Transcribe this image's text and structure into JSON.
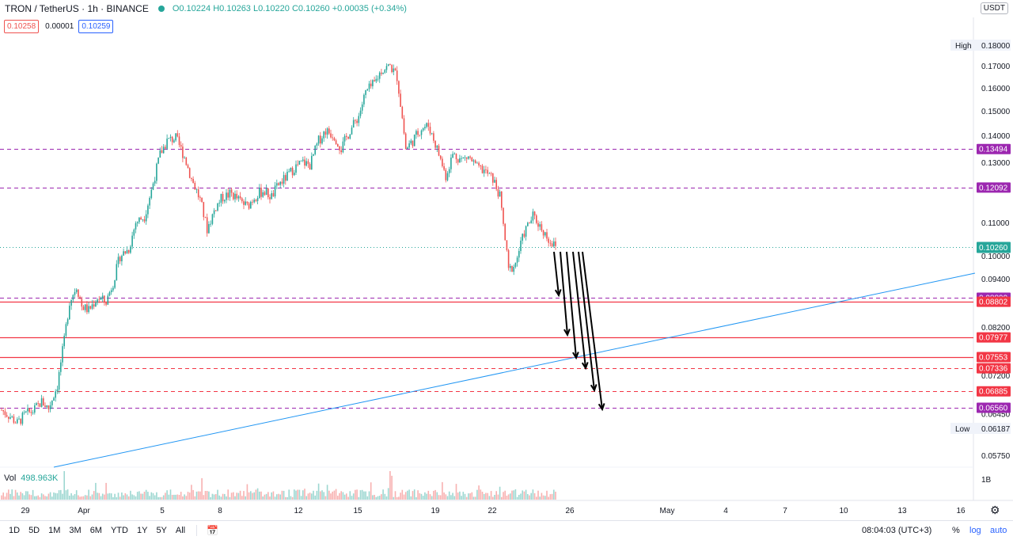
{
  "header": {
    "symbol": "TRON / TetherUS · 1h · BINANCE",
    "open": "O0.10224",
    "high": "H0.10263",
    "low": "L0.10220",
    "close": "C0.10260",
    "change": "+0.00035 (+0.34%)"
  },
  "order": {
    "sell": "0.10258",
    "spread": "0.00001",
    "buy": "0.10259"
  },
  "currency_button": "USDT",
  "volume": {
    "label": "Vol",
    "value": "498.963K",
    "axis": "1B"
  },
  "bottom": {
    "timeframes": [
      "1D",
      "5D",
      "1M",
      "3M",
      "6M",
      "YTD",
      "1Y",
      "5Y",
      "All"
    ],
    "clock": "08:04:03 (UTC+3)",
    "percent": "%",
    "log": "log",
    "auto": "auto"
  },
  "colors": {
    "up": "#26a69a",
    "down": "#ef5350",
    "level_purple": "#9c27b0",
    "level_red": "#f23645",
    "trendline": "#2196f3"
  },
  "chart_data": {
    "type": "candlestick",
    "pair": "TRXUSDT",
    "interval": "1h",
    "y_ticks": [
      "0.18000",
      "0.17000",
      "0.16000",
      "0.15000",
      "0.14000",
      "0.13000",
      "0.11000",
      "0.10000",
      "0.09400",
      "0.08200",
      "0.07200",
      "0.06450",
      "0.05750"
    ],
    "x_ticks": [
      "29",
      "Apr",
      "5",
      "8",
      "12",
      "15",
      "19",
      "22",
      "26",
      "May",
      "4",
      "7",
      "10",
      "13",
      "16"
    ],
    "high_label": {
      "text": "High",
      "value": "0.18000"
    },
    "low_label": {
      "text": "Low",
      "value": "0.06187"
    },
    "last_price": "0.10260",
    "levels": [
      {
        "value": "0.13494",
        "style": "dashed",
        "color": "purple"
      },
      {
        "value": "0.12092",
        "style": "dashed",
        "color": "purple"
      },
      {
        "value": "0.08899",
        "style": "dashed",
        "color": "purple"
      },
      {
        "value": "0.08802",
        "style": "solid",
        "color": "red"
      },
      {
        "value": "0.07977",
        "style": "solid",
        "color": "red"
      },
      {
        "value": "0.07553",
        "style": "solid",
        "color": "red"
      },
      {
        "value": "0.07336",
        "style": "dashed",
        "color": "red"
      },
      {
        "value": "0.06885",
        "style": "dashed",
        "color": "red"
      },
      {
        "value": "0.06560",
        "style": "dashed",
        "color": "purple"
      }
    ],
    "price_path": [
      [
        0,
        0.0652
      ],
      [
        5,
        0.064
      ],
      [
        9,
        0.0628
      ],
      [
        14,
        0.0645
      ],
      [
        18,
        0.065
      ],
      [
        23,
        0.0668
      ],
      [
        27,
        0.0655
      ],
      [
        32,
        0.07
      ],
      [
        36,
        0.079
      ],
      [
        39,
        0.088
      ],
      [
        43,
        0.092
      ],
      [
        46,
        0.087
      ],
      [
        50,
        0.086
      ],
      [
        55,
        0.089
      ],
      [
        60,
        0.088
      ],
      [
        64,
        0.093
      ],
      [
        68,
        0.1
      ],
      [
        73,
        0.102
      ],
      [
        77,
        0.11
      ],
      [
        82,
        0.112
      ],
      [
        86,
        0.12
      ],
      [
        91,
        0.133
      ],
      [
        95,
        0.138
      ],
      [
        100,
        0.139
      ],
      [
        105,
        0.132
      ],
      [
        109,
        0.124
      ],
      [
        114,
        0.117
      ],
      [
        118,
        0.108
      ],
      [
        123,
        0.115
      ],
      [
        127,
        0.118
      ],
      [
        132,
        0.119
      ],
      [
        136,
        0.117
      ],
      [
        141,
        0.115
      ],
      [
        145,
        0.118
      ],
      [
        150,
        0.12
      ],
      [
        155,
        0.118
      ],
      [
        159,
        0.122
      ],
      [
        164,
        0.125
      ],
      [
        168,
        0.128
      ],
      [
        173,
        0.13
      ],
      [
        177,
        0.129
      ],
      [
        182,
        0.138
      ],
      [
        186,
        0.142
      ],
      [
        191,
        0.14
      ],
      [
        195,
        0.135
      ],
      [
        200,
        0.142
      ],
      [
        205,
        0.148
      ],
      [
        209,
        0.158
      ],
      [
        214,
        0.162
      ],
      [
        218,
        0.168
      ],
      [
        223,
        0.17
      ],
      [
        227,
        0.165
      ],
      [
        232,
        0.135
      ],
      [
        236,
        0.138
      ],
      [
        241,
        0.143
      ],
      [
        245,
        0.144
      ],
      [
        250,
        0.135
      ],
      [
        255,
        0.125
      ],
      [
        259,
        0.133
      ],
      [
        264,
        0.131
      ],
      [
        268,
        0.132
      ],
      [
        273,
        0.128
      ],
      [
        277,
        0.127
      ],
      [
        282,
        0.124
      ],
      [
        286,
        0.118
      ],
      [
        291,
        0.096
      ],
      [
        295,
        0.098
      ],
      [
        300,
        0.107
      ],
      [
        305,
        0.112
      ],
      [
        309,
        0.109
      ],
      [
        314,
        0.105
      ],
      [
        318,
        0.1026
      ]
    ],
    "volume_scale": "1B",
    "annotations": {
      "arrows": 6,
      "trendline": true
    }
  }
}
